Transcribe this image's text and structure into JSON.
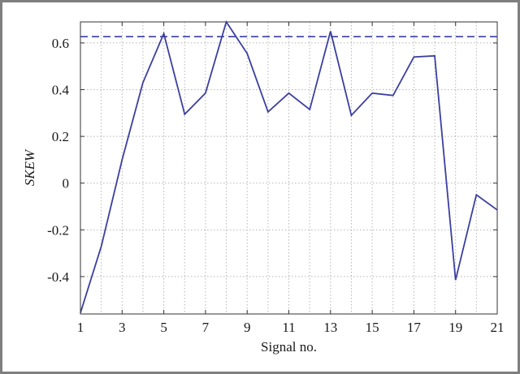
{
  "chart_data": {
    "type": "line",
    "xlabel": "Signal no.",
    "ylabel": "SKEW",
    "xlim": [
      1,
      21
    ],
    "ylim": [
      -0.56,
      0.69
    ],
    "x_ticks": [
      1,
      3,
      5,
      7,
      9,
      11,
      13,
      15,
      17,
      19,
      21
    ],
    "y_ticks": [
      -0.4,
      -0.2,
      0,
      0.2,
      0.4,
      0.6
    ],
    "y_tick_labels": [
      "-0.4",
      "-0.2",
      "0",
      "0.2",
      "0.4",
      "0.6"
    ],
    "grid": true,
    "series": [
      {
        "x": [
          1,
          2,
          3,
          4,
          5,
          6,
          7,
          8,
          9,
          10,
          11,
          12,
          13,
          14,
          15,
          16,
          17,
          18,
          19,
          20,
          21
        ],
        "values": [
          -0.555,
          -0.27,
          0.1,
          0.43,
          0.64,
          0.295,
          0.385,
          0.69,
          0.555,
          0.305,
          0.385,
          0.315,
          0.65,
          0.29,
          0.385,
          0.375,
          0.54,
          0.545,
          -0.415,
          -0.05,
          -0.115
        ],
        "color": "#3b3fa0",
        "style": "solid"
      }
    ],
    "reference_lines": [
      {
        "y": 0.627,
        "color": "#3b3fa0",
        "style": "dashed"
      }
    ]
  }
}
